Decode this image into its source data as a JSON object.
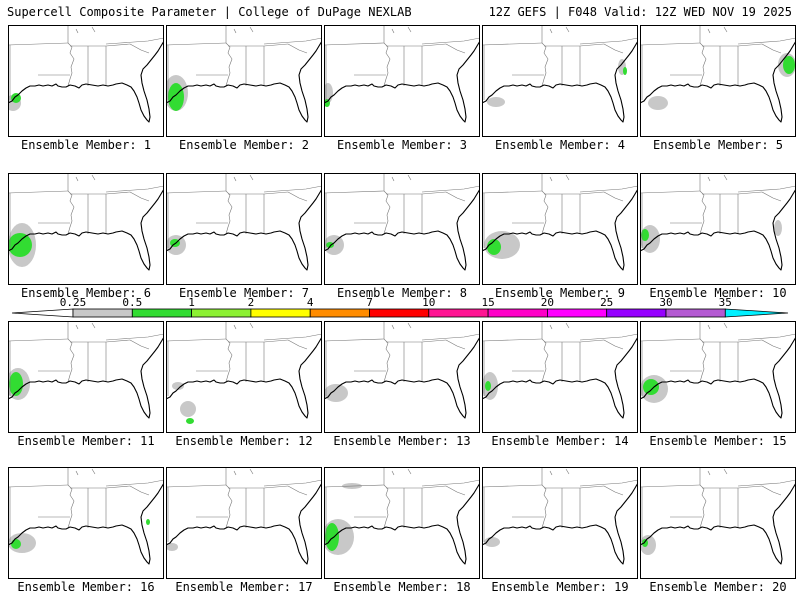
{
  "header": {
    "left": "Supercell Composite Parameter | College of DuPage NEXLAB",
    "right": "12Z GEFS | F048 Valid: 12Z WED NOV 19 2025"
  },
  "panel_label_prefix": "Ensemble Member: ",
  "colors": {
    "land": "#ffffff",
    "boundary": "#000000",
    "state": "#777777",
    "frame": "#000000"
  },
  "legend": {
    "ticks": [
      "0.25",
      "0.5",
      "1",
      "2",
      "4",
      "7",
      "10",
      "15",
      "20",
      "25",
      "30",
      "35"
    ],
    "colors": [
      "#ffffff",
      "#c8c8c8",
      "#32dc32",
      "#8cf032",
      "#ffff00",
      "#ff8c00",
      "#ff0000",
      "#ff1493",
      "#ff00c8",
      "#ff00ff",
      "#9600ff",
      "#b45ad2",
      "#00f0ff"
    ]
  },
  "members": [
    {
      "id": "1",
      "label": "1",
      "fields": [
        {
          "x": 5,
          "y": 78,
          "rx": 8,
          "ry": 8,
          "c": "g"
        },
        {
          "x": 8,
          "y": 73,
          "rx": 5,
          "ry": 5,
          "c": "G"
        }
      ]
    },
    {
      "id": "2",
      "label": "2",
      "fields": [
        {
          "x": 10,
          "y": 68,
          "rx": 12,
          "ry": 18,
          "c": "g"
        },
        {
          "x": 10,
          "y": 72,
          "rx": 8,
          "ry": 14,
          "c": "G"
        }
      ]
    },
    {
      "id": "3",
      "label": "3",
      "fields": [
        {
          "x": 4,
          "y": 68,
          "rx": 5,
          "ry": 10,
          "c": "g"
        },
        {
          "x": 3,
          "y": 78,
          "rx": 3,
          "ry": 4,
          "c": "G"
        }
      ]
    },
    {
      "id": "4",
      "label": "4",
      "fields": [
        {
          "x": 14,
          "y": 77,
          "rx": 9,
          "ry": 5,
          "c": "g"
        },
        {
          "x": 140,
          "y": 42,
          "rx": 4,
          "ry": 8,
          "c": "g"
        },
        {
          "x": 143,
          "y": 46,
          "rx": 2,
          "ry": 4,
          "c": "G"
        }
      ]
    },
    {
      "id": "5",
      "label": "5",
      "fields": [
        {
          "x": 18,
          "y": 78,
          "rx": 10,
          "ry": 7,
          "c": "g"
        },
        {
          "x": 147,
          "y": 40,
          "rx": 9,
          "ry": 12,
          "c": "g"
        },
        {
          "x": 149,
          "y": 40,
          "rx": 6,
          "ry": 9,
          "c": "G"
        }
      ]
    },
    {
      "id": "6",
      "label": "6",
      "fields": [
        {
          "x": 14,
          "y": 72,
          "rx": 14,
          "ry": 22,
          "c": "g"
        },
        {
          "x": 12,
          "y": 72,
          "rx": 12,
          "ry": 12,
          "c": "G"
        }
      ]
    },
    {
      "id": "7",
      "label": "7",
      "fields": [
        {
          "x": 10,
          "y": 72,
          "rx": 10,
          "ry": 10,
          "c": "g"
        },
        {
          "x": 9,
          "y": 70,
          "rx": 5,
          "ry": 4,
          "c": "G"
        }
      ]
    },
    {
      "id": "8",
      "label": "8",
      "fields": [
        {
          "x": 10,
          "y": 72,
          "rx": 10,
          "ry": 10,
          "c": "g"
        },
        {
          "x": 6,
          "y": 72,
          "rx": 4,
          "ry": 3,
          "c": "G"
        }
      ]
    },
    {
      "id": "9",
      "label": "9",
      "fields": [
        {
          "x": 20,
          "y": 72,
          "rx": 18,
          "ry": 14,
          "c": "g"
        },
        {
          "x": 12,
          "y": 74,
          "rx": 7,
          "ry": 8,
          "c": "G"
        }
      ]
    },
    {
      "id": "10",
      "label": "10",
      "fields": [
        {
          "x": 10,
          "y": 66,
          "rx": 10,
          "ry": 14,
          "c": "g"
        },
        {
          "x": 5,
          "y": 62,
          "rx": 4,
          "ry": 6,
          "c": "G"
        },
        {
          "x": 138,
          "y": 55,
          "rx": 4,
          "ry": 8,
          "c": "g"
        }
      ]
    },
    {
      "id": "11",
      "label": "11",
      "fields": [
        {
          "x": 10,
          "y": 63,
          "rx": 12,
          "ry": 16,
          "c": "g"
        },
        {
          "x": 8,
          "y": 63,
          "rx": 7,
          "ry": 12,
          "c": "G"
        }
      ]
    },
    {
      "id": "12",
      "label": "12",
      "fields": [
        {
          "x": 22,
          "y": 88,
          "rx": 8,
          "ry": 8,
          "c": "g"
        },
        {
          "x": 24,
          "y": 100,
          "rx": 4,
          "ry": 3,
          "c": "G"
        },
        {
          "x": 12,
          "y": 65,
          "rx": 6,
          "ry": 4,
          "c": "g"
        }
      ]
    },
    {
      "id": "13",
      "label": "13",
      "fields": [
        {
          "x": 12,
          "y": 72,
          "rx": 12,
          "ry": 9,
          "c": "g"
        }
      ]
    },
    {
      "id": "14",
      "label": "14",
      "fields": [
        {
          "x": 8,
          "y": 65,
          "rx": 8,
          "ry": 14,
          "c": "g"
        },
        {
          "x": 6,
          "y": 65,
          "rx": 3,
          "ry": 5,
          "c": "G"
        }
      ]
    },
    {
      "id": "15",
      "label": "15",
      "fields": [
        {
          "x": 14,
          "y": 68,
          "rx": 14,
          "ry": 14,
          "c": "g"
        },
        {
          "x": 11,
          "y": 66,
          "rx": 8,
          "ry": 8,
          "c": "G"
        }
      ]
    },
    {
      "id": "16",
      "label": "16",
      "fields": [
        {
          "x": 14,
          "y": 76,
          "rx": 14,
          "ry": 10,
          "c": "g"
        },
        {
          "x": 8,
          "y": 77,
          "rx": 5,
          "ry": 5,
          "c": "G"
        },
        {
          "x": 140,
          "y": 55,
          "rx": 2,
          "ry": 3,
          "c": "G"
        }
      ]
    },
    {
      "id": "17",
      "label": "17",
      "fields": [
        {
          "x": 6,
          "y": 80,
          "rx": 6,
          "ry": 4,
          "c": "g"
        }
      ]
    },
    {
      "id": "18",
      "label": "18",
      "fields": [
        {
          "x": 14,
          "y": 70,
          "rx": 16,
          "ry": 18,
          "c": "g"
        },
        {
          "x": 8,
          "y": 70,
          "rx": 7,
          "ry": 14,
          "c": "G"
        },
        {
          "x": 28,
          "y": 19,
          "rx": 10,
          "ry": 3,
          "c": "g"
        }
      ]
    },
    {
      "id": "19",
      "label": "19",
      "fields": [
        {
          "x": 10,
          "y": 75,
          "rx": 8,
          "ry": 5,
          "c": "g"
        }
      ]
    },
    {
      "id": "20",
      "label": "20",
      "fields": [
        {
          "x": 8,
          "y": 78,
          "rx": 8,
          "ry": 10,
          "c": "g"
        },
        {
          "x": 5,
          "y": 76,
          "rx": 3,
          "ry": 4,
          "c": "G"
        }
      ]
    }
  ]
}
